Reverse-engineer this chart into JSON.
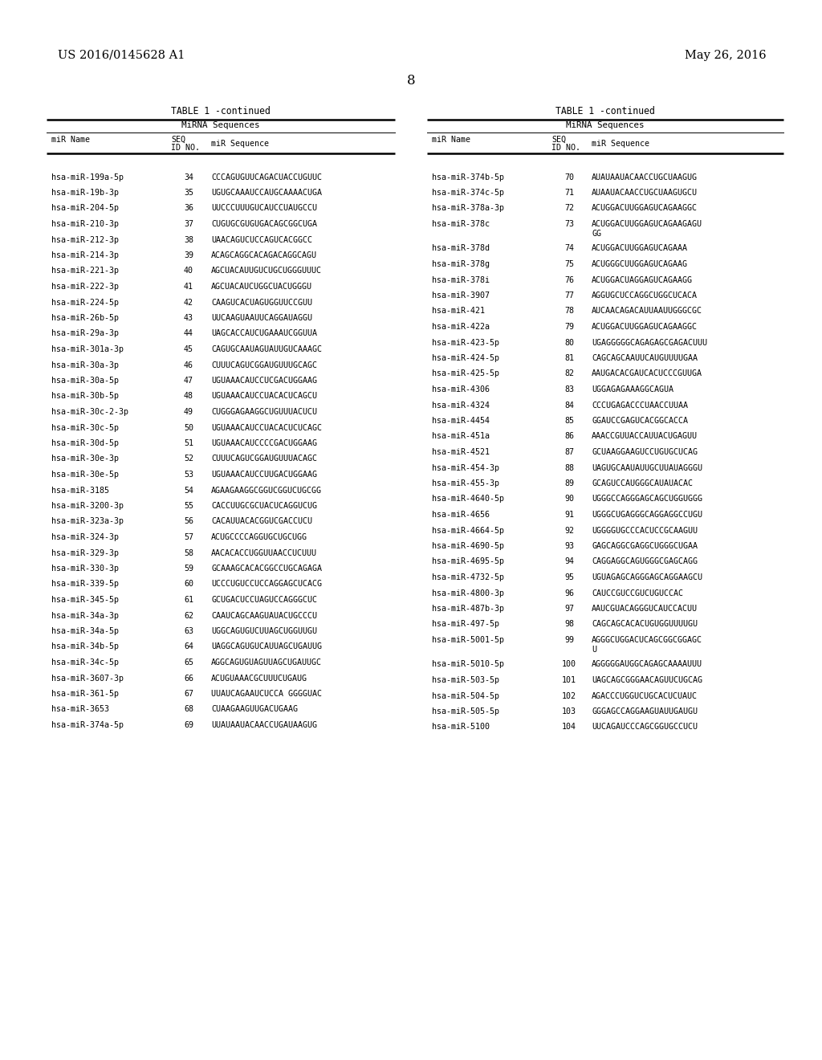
{
  "title_left": "US 2016/0145628 A1",
  "title_right": "May 26, 2016",
  "page_number": "8",
  "table_title": "TABLE 1 -continued",
  "col_header": "MiRNA Sequences",
  "col1_header": "miR Name",
  "col2_header_line1": "SEQ",
  "col2_header_line2": "ID NO.",
  "col3_header": "miR Sequence",
  "left_data": [
    [
      "hsa-miR-199a-5p",
      "34",
      "CCCAGUGUUCAGACUACCUGUUC"
    ],
    [
      "hsa-miR-19b-3p",
      "35",
      "UGUGCAAAUCCAUGCAAAACUGA"
    ],
    [
      "hsa-miR-204-5p",
      "36",
      "UUCCCUUUGUCAUCCUAUGCCU"
    ],
    [
      "hsa-miR-210-3p",
      "37",
      "CUGUGCGUGUGACAGCGGCUGA"
    ],
    [
      "hsa-miR-212-3p",
      "38",
      "UAACAGUCUCCAGUCACGGCC"
    ],
    [
      "hsa-miR-214-3p",
      "39",
      "ACAGCAGGCACAGACAGGCAGU"
    ],
    [
      "hsa-miR-221-3p",
      "40",
      "AGCUACAUUGUCUGCUGGGUUUC"
    ],
    [
      "hsa-miR-222-3p",
      "41",
      "AGCUACAUCUGGCUACUGGGU"
    ],
    [
      "hsa-miR-224-5p",
      "42",
      "CAAGUCACUAGUGGUUCCGUU"
    ],
    [
      "hsa-miR-26b-5p",
      "43",
      "UUCAAGUAAUUCAGGAUAGGU"
    ],
    [
      "hsa-miR-29a-3p",
      "44",
      "UAGCACCAUCUGAAAUCGGUUA"
    ],
    [
      "hsa-miR-301a-3p",
      "45",
      "CAGUGCAAUAGUAUUGUCAAAGC"
    ],
    [
      "hsa-miR-30a-3p",
      "46",
      "CUUUCAGUCGGAUGUUUGCAGC"
    ],
    [
      "hsa-miR-30a-5p",
      "47",
      "UGUAAACAUCCUCGACUGGAAG"
    ],
    [
      "hsa-miR-30b-5p",
      "48",
      "UGUAAACAUCCUACACUCAGCU"
    ],
    [
      "hsa-miR-30c-2-3p",
      "49",
      "CUGGGAGAAGGCUGUUUACUCU"
    ],
    [
      "hsa-miR-30c-5p",
      "50",
      "UGUAAACAUCCUACACUCUCAGC"
    ],
    [
      "hsa-miR-30d-5p",
      "51",
      "UGUAAACAUCCCCGACUGGAAG"
    ],
    [
      "hsa-miR-30e-3p",
      "52",
      "CUUUCAGUCGGAUGUUUACAGC"
    ],
    [
      "hsa-miR-30e-5p",
      "53",
      "UGUAAACAUCCUUGACUGGAAG"
    ],
    [
      "hsa-miR-3185",
      "54",
      "AGAAGAAGGCGGUCGGUCUGCGG"
    ],
    [
      "hsa-miR-3200-3p",
      "55",
      "CACCUUGCGCUACUCAGGUCUG"
    ],
    [
      "hsa-miR-323a-3p",
      "56",
      "CACAUUACACGGUCGACCUCU"
    ],
    [
      "hsa-miR-324-3p",
      "57",
      "ACUGCCCCAGGUGCUGCUGG"
    ],
    [
      "hsa-miR-329-3p",
      "58",
      "AACACACCUGGUUAACCUCUUU"
    ],
    [
      "hsa-miR-330-3p",
      "59",
      "GCAAAGCACACGGCCUGCAGAGA"
    ],
    [
      "hsa-miR-339-5p",
      "60",
      "UCCCUGUCCUCCAGGAGCUCACG"
    ],
    [
      "hsa-miR-345-5p",
      "61",
      "GCUGACUCCUAGUCCAGGGCUC"
    ],
    [
      "hsa-miR-34a-3p",
      "62",
      "CAAUCAGCAAGUAUACUGCCCU"
    ],
    [
      "hsa-miR-34a-5p",
      "63",
      "UGGCAGUGUCUUAGCUGGUUGU"
    ],
    [
      "hsa-miR-34b-5p",
      "64",
      "UAGGCAGUGUCAUUAGCUGAUUG"
    ],
    [
      "hsa-miR-34c-5p",
      "65",
      "AGGCAGUGUAGUUAGCUGAUUGC"
    ],
    [
      "hsa-miR-3607-3p",
      "66",
      "ACUGUAAACGCUUUCUGAUG"
    ],
    [
      "hsa-miR-361-5p",
      "67",
      "UUAUCAGAAUCUCCA GGGGUAC"
    ],
    [
      "hsa-miR-3653",
      "68",
      "CUAAGAAGUUGACUGAAG"
    ],
    [
      "hsa-miR-374a-5p",
      "69",
      "UUAUAAUACAACCUGAUAAGUG"
    ]
  ],
  "right_data": [
    [
      "hsa-miR-374b-5p",
      "70",
      "AUAUAAUACAACCUGCUAAGUG",
      false
    ],
    [
      "hsa-miR-374c-5p",
      "71",
      "AUAAUACAACCUGCUAAGUGCU",
      false
    ],
    [
      "hsa-miR-378a-3p",
      "72",
      "ACUGGACUUGGAGUCAGAAGGC",
      false
    ],
    [
      "hsa-miR-378c",
      "73",
      "ACUGGACUUGGAGUCAGAAGAGU\nGG",
      true
    ],
    [
      "hsa-miR-378d",
      "74",
      "ACUGGACUUGGAGUCAGAAA",
      false
    ],
    [
      "hsa-miR-378g",
      "75",
      "ACUGGGCUUGGAGUCAGAAG",
      false
    ],
    [
      "hsa-miR-378i",
      "76",
      "ACUGGACUAGGAGUCAGAAGG",
      false
    ],
    [
      "hsa-miR-3907",
      "77",
      "AGGUGCUCCAGGCUGGCUCACA",
      false
    ],
    [
      "hsa-miR-421",
      "78",
      "AUCAACAGACAUUAAUUGGGCGC",
      false
    ],
    [
      "hsa-miR-422a",
      "79",
      "ACUGGACUUGGAGUCAGAAGGC",
      false
    ],
    [
      "hsa-miR-423-5p",
      "80",
      "UGAGGGGGCAGAGAGCGAGACUUU",
      false
    ],
    [
      "hsa-miR-424-5p",
      "81",
      "CAGCAGCAAUUCAUGUUUUGAA",
      false
    ],
    [
      "hsa-miR-425-5p",
      "82",
      "AAUGACACGAUCACUCCCGUUGA",
      false
    ],
    [
      "hsa-miR-4306",
      "83",
      "UGGAGAGAAAGGCAGUA",
      false
    ],
    [
      "hsa-miR-4324",
      "84",
      "CCCUGAGACCCUAACCUUAA",
      false
    ],
    [
      "hsa-miR-4454",
      "85",
      "GGAUCCGAGUCACGGCACCA",
      false
    ],
    [
      "hsa-miR-451a",
      "86",
      "AAACCGUUACCAUUACUGAGUU",
      false
    ],
    [
      "hsa-miR-4521",
      "87",
      "GCUAAGGAAGUCCUGUGCUCAG",
      false
    ],
    [
      "hsa-miR-454-3p",
      "88",
      "UAGUGCAAUAUUGCUUAUAGGGU",
      false
    ],
    [
      "hsa-miR-455-3p",
      "89",
      "GCAGUCCAUGGGCAUAUACAC",
      false
    ],
    [
      "hsa-miR-4640-5p",
      "90",
      "UGGGCCAGGGAGCAGCUGGUGGG",
      false
    ],
    [
      "hsa-miR-4656",
      "91",
      "UGGGCUGAGGGCAGGAGGCCUGU",
      false
    ],
    [
      "hsa-miR-4664-5p",
      "92",
      "UGGGGUGCCCACUCCGCAAGUU",
      false
    ],
    [
      "hsa-miR-4690-5p",
      "93",
      "GAGCAGGCGAGGCUGGGCUGAA",
      false
    ],
    [
      "hsa-miR-4695-5p",
      "94",
      "CAGGAGGCAGUGGGCGAGCAGG",
      false
    ],
    [
      "hsa-miR-4732-5p",
      "95",
      "UGUAGAGCAGGGAGCAGGAAGCU",
      false
    ],
    [
      "hsa-miR-4800-3p",
      "96",
      "CAUCCGUCCGUCUGUCCAC",
      false
    ],
    [
      "hsa-miR-487b-3p",
      "97",
      "AAUCGUACAGGGUCAUCCACUU",
      false
    ],
    [
      "hsa-miR-497-5p",
      "98",
      "CAGCAGCACACUGUGGUUUUGU",
      false
    ],
    [
      "hsa-miR-5001-5p",
      "99",
      "AGGGCUGGACUCAGCGGCGGAGC\nU",
      true
    ],
    [
      "hsa-miR-5010-5p",
      "100",
      "AGGGGGAUGGCAGAGCAAAAUUU",
      false
    ],
    [
      "hsa-miR-503-5p",
      "101",
      "UAGCAGCGGGAACAGUUCUGCAG",
      false
    ],
    [
      "hsa-miR-504-5p",
      "102",
      "AGACCCUGGUCUGCACUCUAUC",
      false
    ],
    [
      "hsa-miR-505-5p",
      "103",
      "GGGAGCCAGGAAGUAUUGAUGU",
      false
    ],
    [
      "hsa-miR-5100",
      "104",
      "UUCAGAUCCCAGCGGUGCCUCU",
      false
    ]
  ],
  "background_color": "#ffffff",
  "text_color": "#000000",
  "mono_font": "Courier New",
  "serif_font": "Times New Roman"
}
